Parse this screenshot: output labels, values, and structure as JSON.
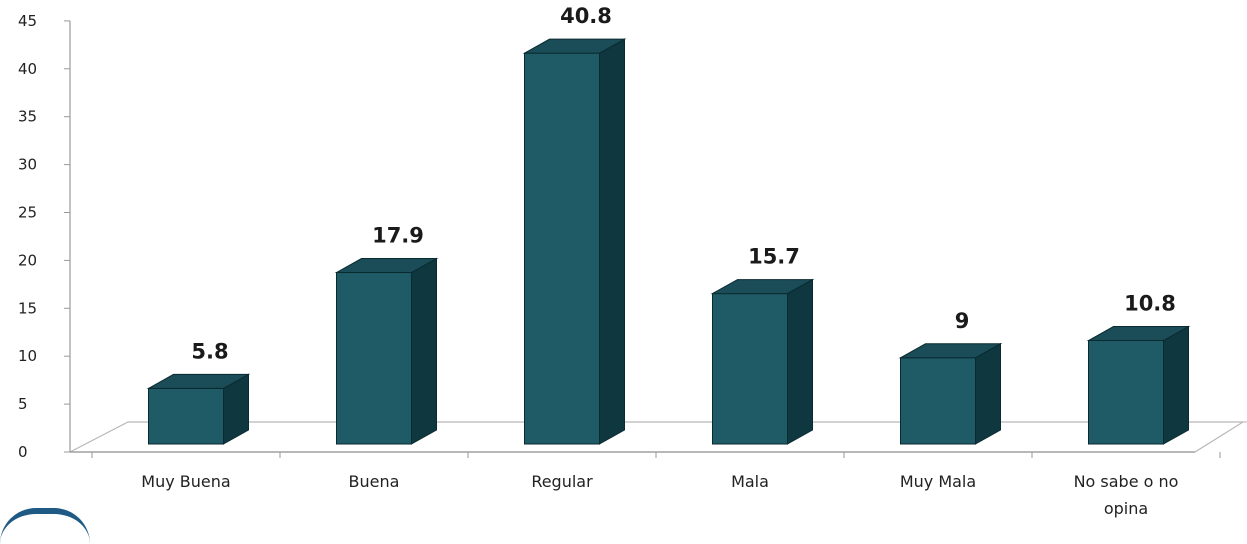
{
  "chart_data": {
    "type": "bar",
    "categories": [
      "Muy Buena",
      "Buena",
      "Regular",
      "Mala",
      "Muy Mala",
      "No sabe o no opina"
    ],
    "values": [
      5.8,
      17.9,
      40.8,
      15.7,
      9,
      10.8
    ],
    "value_labels": [
      "5.8",
      "17.9",
      "40.8",
      "15.7",
      "9",
      "10.8"
    ],
    "title": "",
    "xlabel": "",
    "ylabel": "",
    "ylim": [
      0,
      45
    ],
    "yticks": [
      "0",
      "5",
      "10",
      "15",
      "20",
      "25",
      "30",
      "35",
      "40",
      "45"
    ],
    "grid": false,
    "legend": "none",
    "bar_style": "3d",
    "colors": {
      "bar_front": "#1f5b66",
      "bar_top": "#1a4d57",
      "bar_side": "#0f3740",
      "axis": "#999999",
      "floor": "#b8b8b8"
    }
  }
}
